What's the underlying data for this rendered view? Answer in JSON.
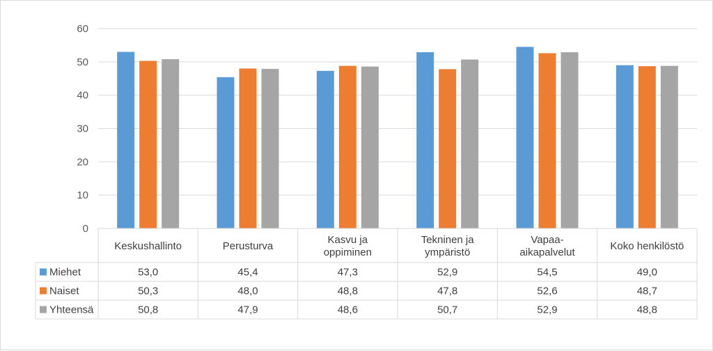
{
  "chart_data": {
    "type": "bar",
    "categories": [
      [
        "Keskushallinto"
      ],
      [
        "Perusturva"
      ],
      [
        "Kasvu ja",
        "oppiminen"
      ],
      [
        "Tekninen ja",
        "ympäristö"
      ],
      [
        "Vapaa-",
        "aikapalvelut"
      ],
      [
        "Koko henkilöstö"
      ]
    ],
    "series": [
      {
        "name": "Miehet",
        "color": "#5b9bd5",
        "values": [
          53.0,
          45.4,
          47.3,
          52.9,
          54.5,
          49.0
        ],
        "labels": [
          "53,0",
          "45,4",
          "47,3",
          "52,9",
          "54,5",
          "49,0"
        ]
      },
      {
        "name": "Naiset",
        "color": "#ed7d31",
        "values": [
          50.3,
          48.0,
          48.8,
          47.8,
          52.6,
          48.7
        ],
        "labels": [
          "50,3",
          "48,0",
          "48,8",
          "47,8",
          "52,6",
          "48,7"
        ]
      },
      {
        "name": "Yhteensä",
        "color": "#a5a5a5",
        "values": [
          50.8,
          47.9,
          48.6,
          50.7,
          52.9,
          48.8
        ],
        "labels": [
          "50,8",
          "47,9",
          "48,6",
          "50,7",
          "52,9",
          "48,8"
        ]
      }
    ],
    "ylim": [
      0,
      60
    ],
    "yticks": [
      "0",
      "10",
      "20",
      "30",
      "40",
      "50",
      "60"
    ],
    "grid": true,
    "legend": "data-table"
  }
}
